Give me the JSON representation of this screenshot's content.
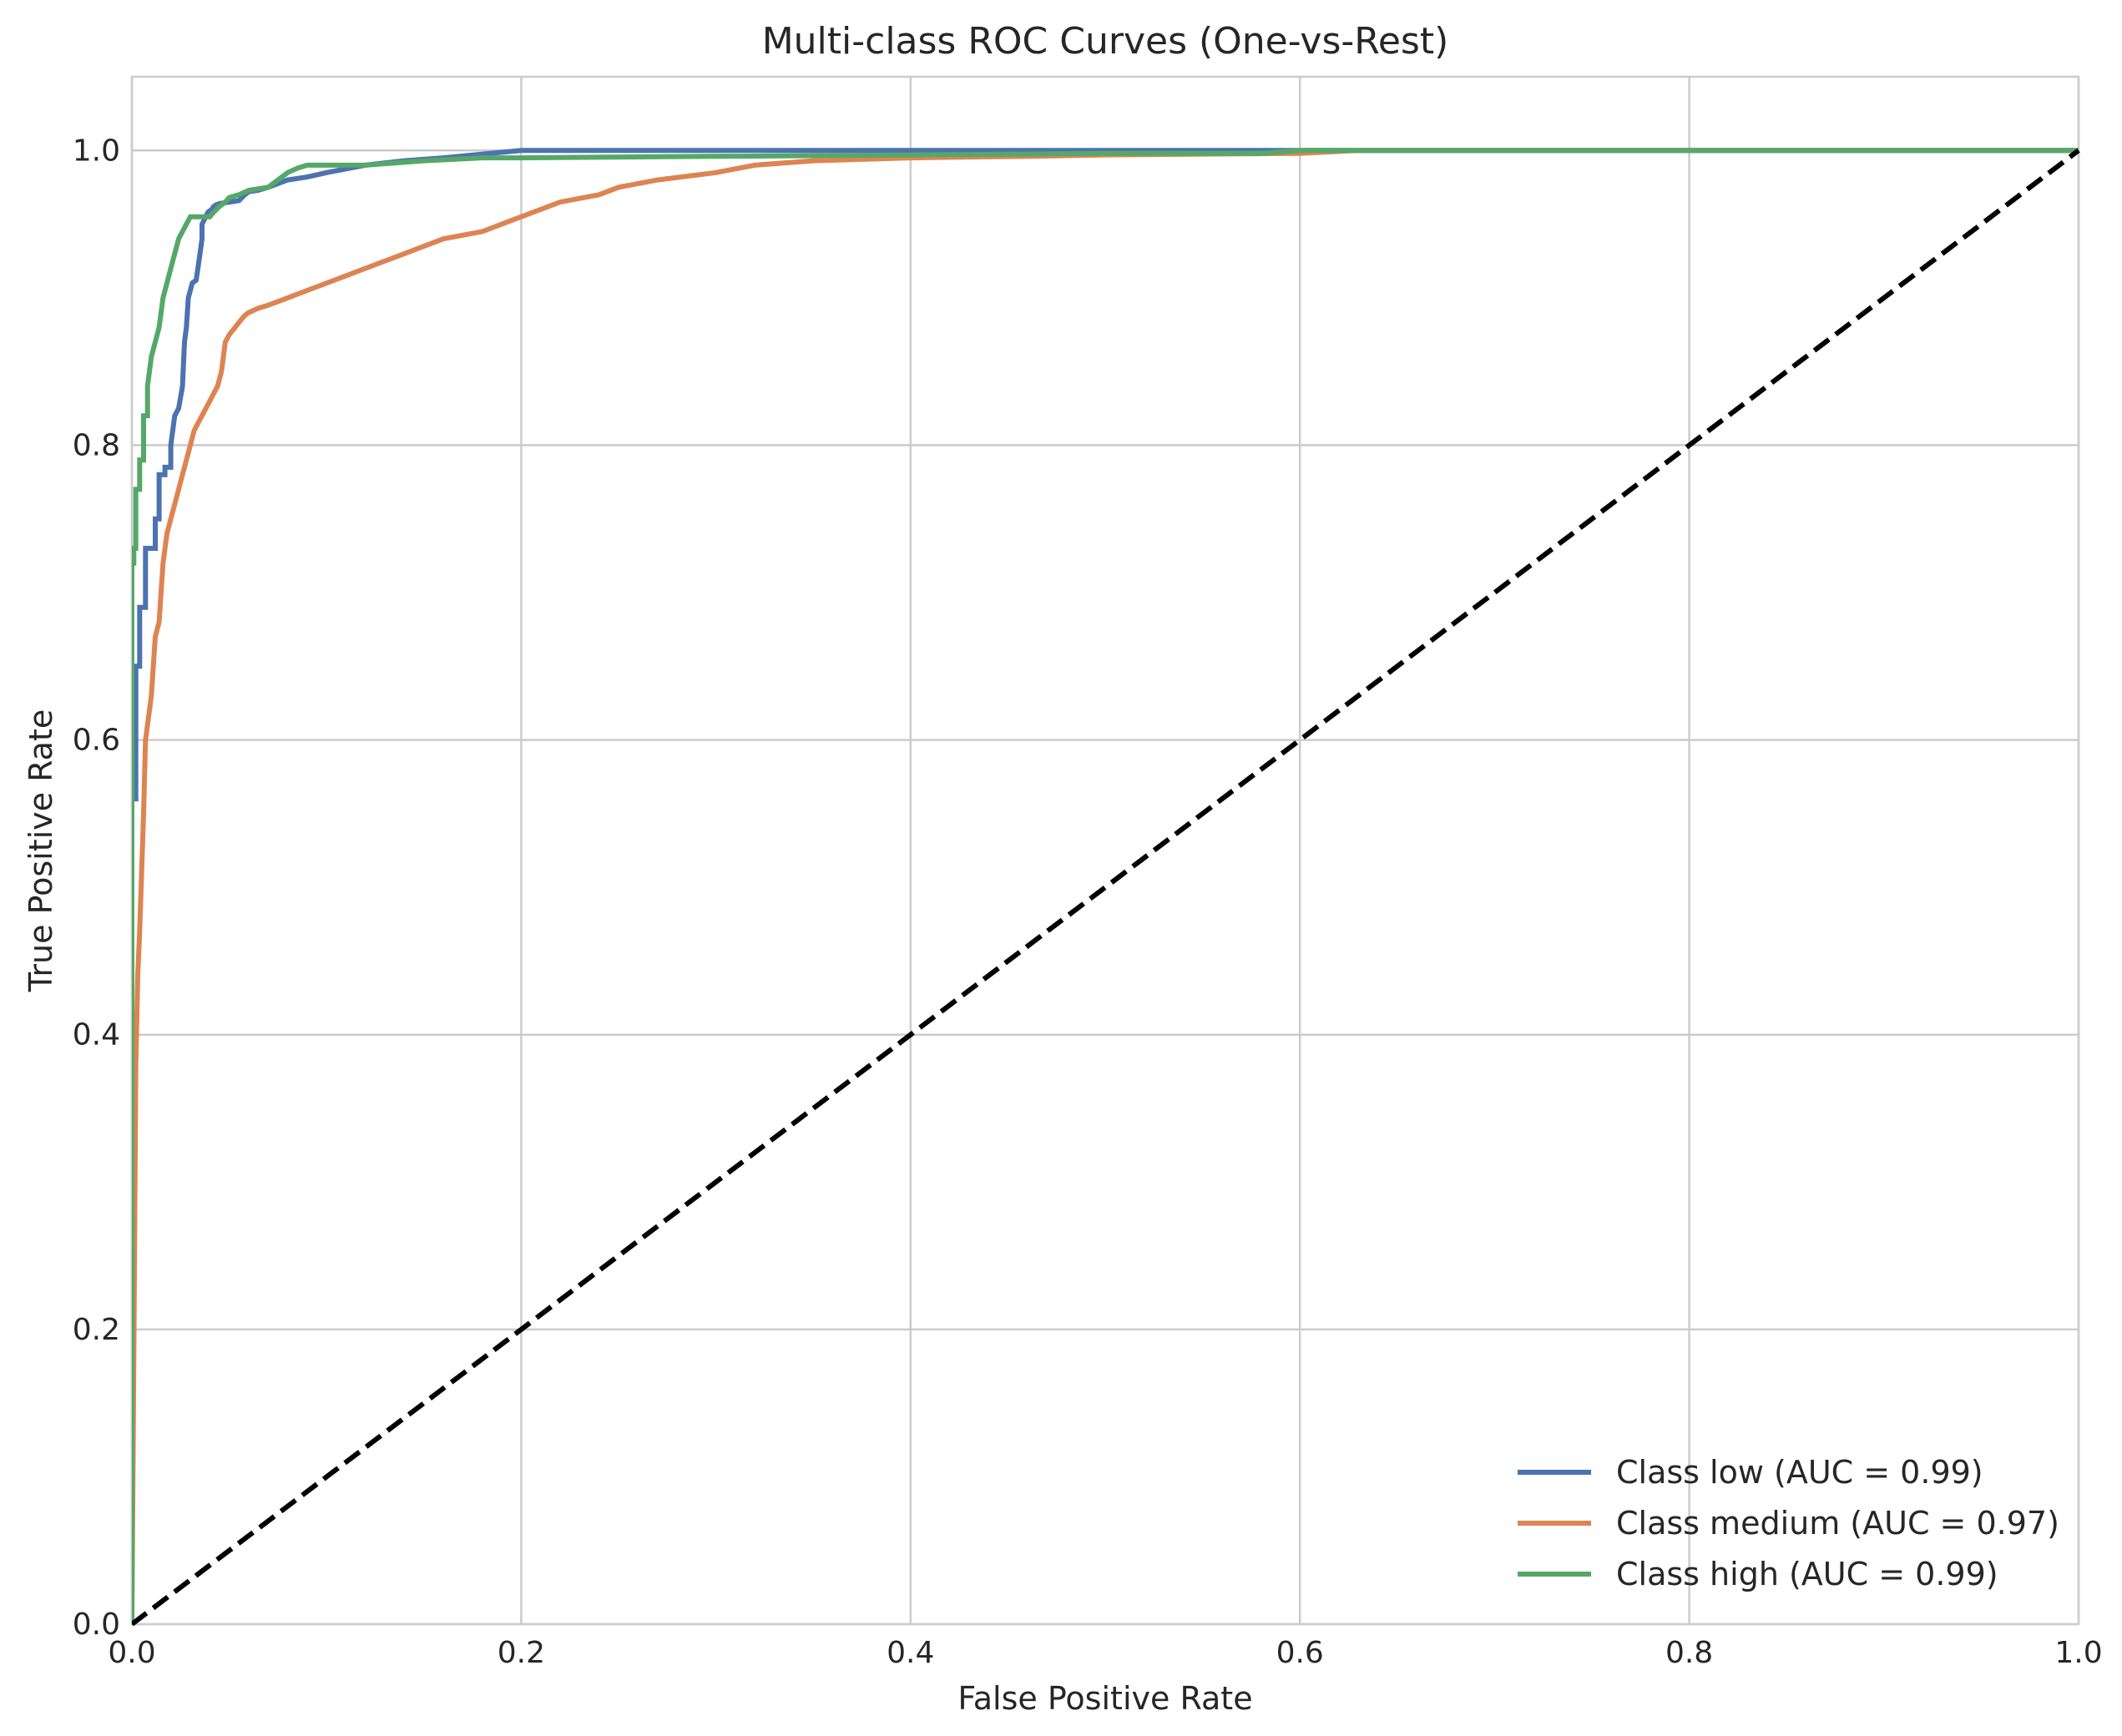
{
  "chart_data": {
    "type": "line",
    "title": "Multi-class ROC Curves (One-vs-Rest)",
    "xlabel": "False Positive Rate",
    "ylabel": "True Positive Rate",
    "xlim": [
      0.0,
      1.0
    ],
    "ylim": [
      0.0,
      1.05
    ],
    "xticks": [
      "0.0",
      "0.2",
      "0.4",
      "0.6",
      "0.8",
      "1.0"
    ],
    "yticks": [
      "0.0",
      "0.2",
      "0.4",
      "0.6",
      "0.8",
      "1.0"
    ],
    "grid": true,
    "legend_position": "lower-right",
    "series": [
      {
        "name": "Class low (AUC = 0.99)",
        "color": "#4c72b0",
        "x": [
          0.0,
          0.0,
          0.002,
          0.002,
          0.004,
          0.004,
          0.007,
          0.007,
          0.012,
          0.012,
          0.014,
          0.014,
          0.017,
          0.017,
          0.02,
          0.02,
          0.022,
          0.024,
          0.026,
          0.027,
          0.028,
          0.029,
          0.03,
          0.031,
          0.033,
          0.035,
          0.036,
          0.036,
          0.038,
          0.039,
          0.041,
          0.042,
          0.043,
          0.045,
          0.05,
          0.055,
          0.058,
          0.06,
          0.065,
          0.07,
          0.08,
          0.09,
          0.1,
          0.12,
          0.14,
          0.16,
          0.2,
          0.3,
          0.5,
          0.58,
          0.6,
          0.8,
          1.0
        ],
        "y": [
          0.0,
          0.56,
          0.56,
          0.65,
          0.65,
          0.69,
          0.69,
          0.73,
          0.73,
          0.75,
          0.75,
          0.78,
          0.78,
          0.785,
          0.785,
          0.8,
          0.82,
          0.825,
          0.84,
          0.87,
          0.88,
          0.9,
          0.905,
          0.91,
          0.912,
          0.93,
          0.94,
          0.95,
          0.955,
          0.958,
          0.96,
          0.962,
          0.963,
          0.964,
          0.965,
          0.966,
          0.97,
          0.972,
          0.973,
          0.975,
          0.98,
          0.982,
          0.985,
          0.99,
          0.993,
          0.995,
          1.0,
          1.0,
          1.0,
          1.0,
          1.0,
          1.0,
          1.0
        ]
      },
      {
        "name": "Class medium (AUC = 0.97)",
        "color": "#dd8452",
        "x": [
          0.0,
          0.001,
          0.002,
          0.003,
          0.004,
          0.006,
          0.007,
          0.008,
          0.01,
          0.012,
          0.014,
          0.016,
          0.018,
          0.02,
          0.022,
          0.024,
          0.026,
          0.028,
          0.03,
          0.032,
          0.034,
          0.036,
          0.04,
          0.042,
          0.044,
          0.046,
          0.048,
          0.05,
          0.053,
          0.056,
          0.058,
          0.06,
          0.065,
          0.07,
          0.08,
          0.09,
          0.1,
          0.11,
          0.12,
          0.14,
          0.15,
          0.16,
          0.18,
          0.2,
          0.22,
          0.24,
          0.25,
          0.27,
          0.3,
          0.32,
          0.35,
          0.4,
          0.46,
          0.5,
          0.6,
          0.63,
          0.7,
          0.8,
          1.0
        ],
        "y": [
          0.0,
          0.18,
          0.38,
          0.44,
          0.47,
          0.55,
          0.6,
          0.61,
          0.63,
          0.67,
          0.68,
          0.72,
          0.74,
          0.75,
          0.76,
          0.77,
          0.78,
          0.79,
          0.8,
          0.81,
          0.815,
          0.82,
          0.83,
          0.835,
          0.84,
          0.85,
          0.87,
          0.875,
          0.88,
          0.885,
          0.888,
          0.89,
          0.893,
          0.895,
          0.9,
          0.905,
          0.91,
          0.915,
          0.92,
          0.93,
          0.935,
          0.94,
          0.945,
          0.955,
          0.965,
          0.97,
          0.975,
          0.98,
          0.985,
          0.99,
          0.993,
          0.995,
          0.996,
          0.997,
          0.998,
          1.0,
          1.0,
          1.0,
          1.0
        ]
      },
      {
        "name": "Class high (AUC = 0.99)",
        "color": "#55a868",
        "x": [
          0.0,
          0.0,
          0.001,
          0.001,
          0.002,
          0.002,
          0.004,
          0.004,
          0.006,
          0.006,
          0.008,
          0.008,
          0.01,
          0.012,
          0.014,
          0.016,
          0.018,
          0.02,
          0.022,
          0.024,
          0.026,
          0.028,
          0.03,
          0.04,
          0.042,
          0.045,
          0.048,
          0.05,
          0.055,
          0.06,
          0.07,
          0.075,
          0.08,
          0.085,
          0.09,
          0.1,
          0.12,
          0.14,
          0.15,
          0.18,
          0.2,
          0.3,
          0.4,
          0.5,
          0.58,
          0.6,
          0.7,
          0.8,
          1.0
        ],
        "y": [
          0.0,
          0.72,
          0.72,
          0.73,
          0.73,
          0.77,
          0.77,
          0.79,
          0.79,
          0.82,
          0.82,
          0.84,
          0.86,
          0.87,
          0.88,
          0.9,
          0.91,
          0.92,
          0.93,
          0.94,
          0.945,
          0.95,
          0.955,
          0.955,
          0.958,
          0.962,
          0.965,
          0.968,
          0.97,
          0.973,
          0.975,
          0.98,
          0.985,
          0.988,
          0.99,
          0.99,
          0.99,
          0.992,
          0.993,
          0.995,
          0.995,
          0.996,
          0.997,
          0.998,
          0.998,
          1.0,
          1.0,
          1.0,
          1.0
        ]
      }
    ],
    "reference_line": {
      "x": [
        0.0,
        1.0
      ],
      "y": [
        0.0,
        1.0
      ],
      "color": "#000000",
      "style": "dashed"
    }
  }
}
